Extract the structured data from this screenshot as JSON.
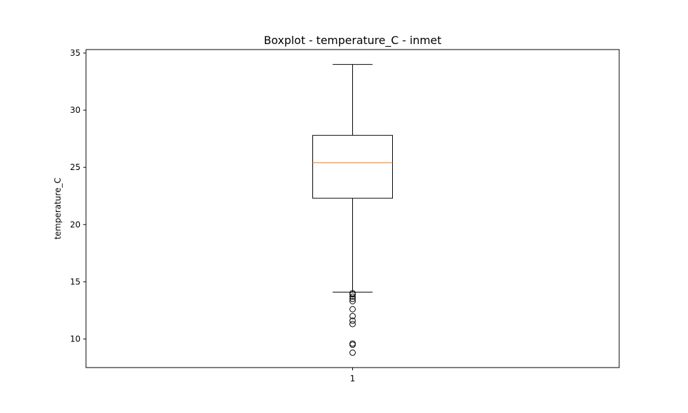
{
  "chart_data": {
    "type": "boxplot",
    "title": "Boxplot - temperature_C - inmet",
    "xlabel": "",
    "ylabel": "temperature_C",
    "categories": [
      "1"
    ],
    "ylim": [
      7.5,
      35.3
    ],
    "yticks": [
      10,
      15,
      20,
      25,
      30,
      35
    ],
    "grid": false,
    "boxes": [
      {
        "category": "1",
        "whisker_low": 14.1,
        "q1": 22.3,
        "median": 25.4,
        "q3": 27.8,
        "whisker_high": 34.0,
        "outliers": [
          14.0,
          13.9,
          13.7,
          13.5,
          13.3,
          12.6,
          12.0,
          11.6,
          11.3,
          9.6,
          9.5,
          8.8
        ]
      }
    ],
    "colors": {
      "median": "#ff7f0e",
      "box": "#000000",
      "outlier": "#000000"
    }
  }
}
